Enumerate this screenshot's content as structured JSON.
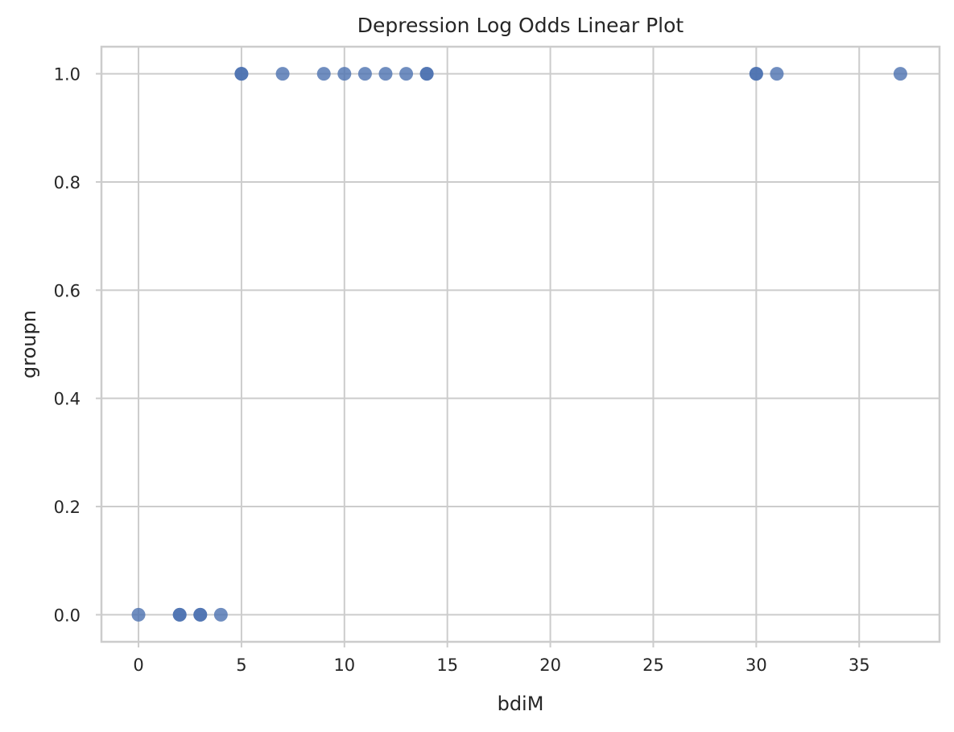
{
  "chart_data": {
    "type": "scatter",
    "title": "Depression Log Odds Linear Plot",
    "xlabel": "bdiM",
    "ylabel": "groupn",
    "xlim": [
      -1.8,
      38.9
    ],
    "ylim": [
      -0.05,
      1.05
    ],
    "x_ticks": [
      0,
      5,
      10,
      15,
      20,
      25,
      30,
      35
    ],
    "x_tick_labels": [
      "0",
      "5",
      "10",
      "15",
      "20",
      "25",
      "30",
      "35"
    ],
    "y_ticks": [
      0.0,
      0.2,
      0.4,
      0.6,
      0.8,
      1.0
    ],
    "y_tick_labels": [
      "0.0",
      "0.2",
      "0.4",
      "0.6",
      "0.8",
      "1.0"
    ],
    "grid": true,
    "colors": {
      "point": "#4c72b0",
      "grid": "#cccccc",
      "background": "#ffffff"
    },
    "series": [
      {
        "x": [
          0,
          2,
          2,
          3,
          3,
          4,
          5,
          5,
          7,
          9,
          10,
          11,
          12,
          13,
          14,
          14,
          30,
          30,
          31,
          37
        ],
        "y": [
          0,
          0,
          0,
          0,
          0,
          0,
          1,
          1,
          1,
          1,
          1,
          1,
          1,
          1,
          1,
          1,
          1,
          1,
          1,
          1
        ]
      }
    ]
  }
}
